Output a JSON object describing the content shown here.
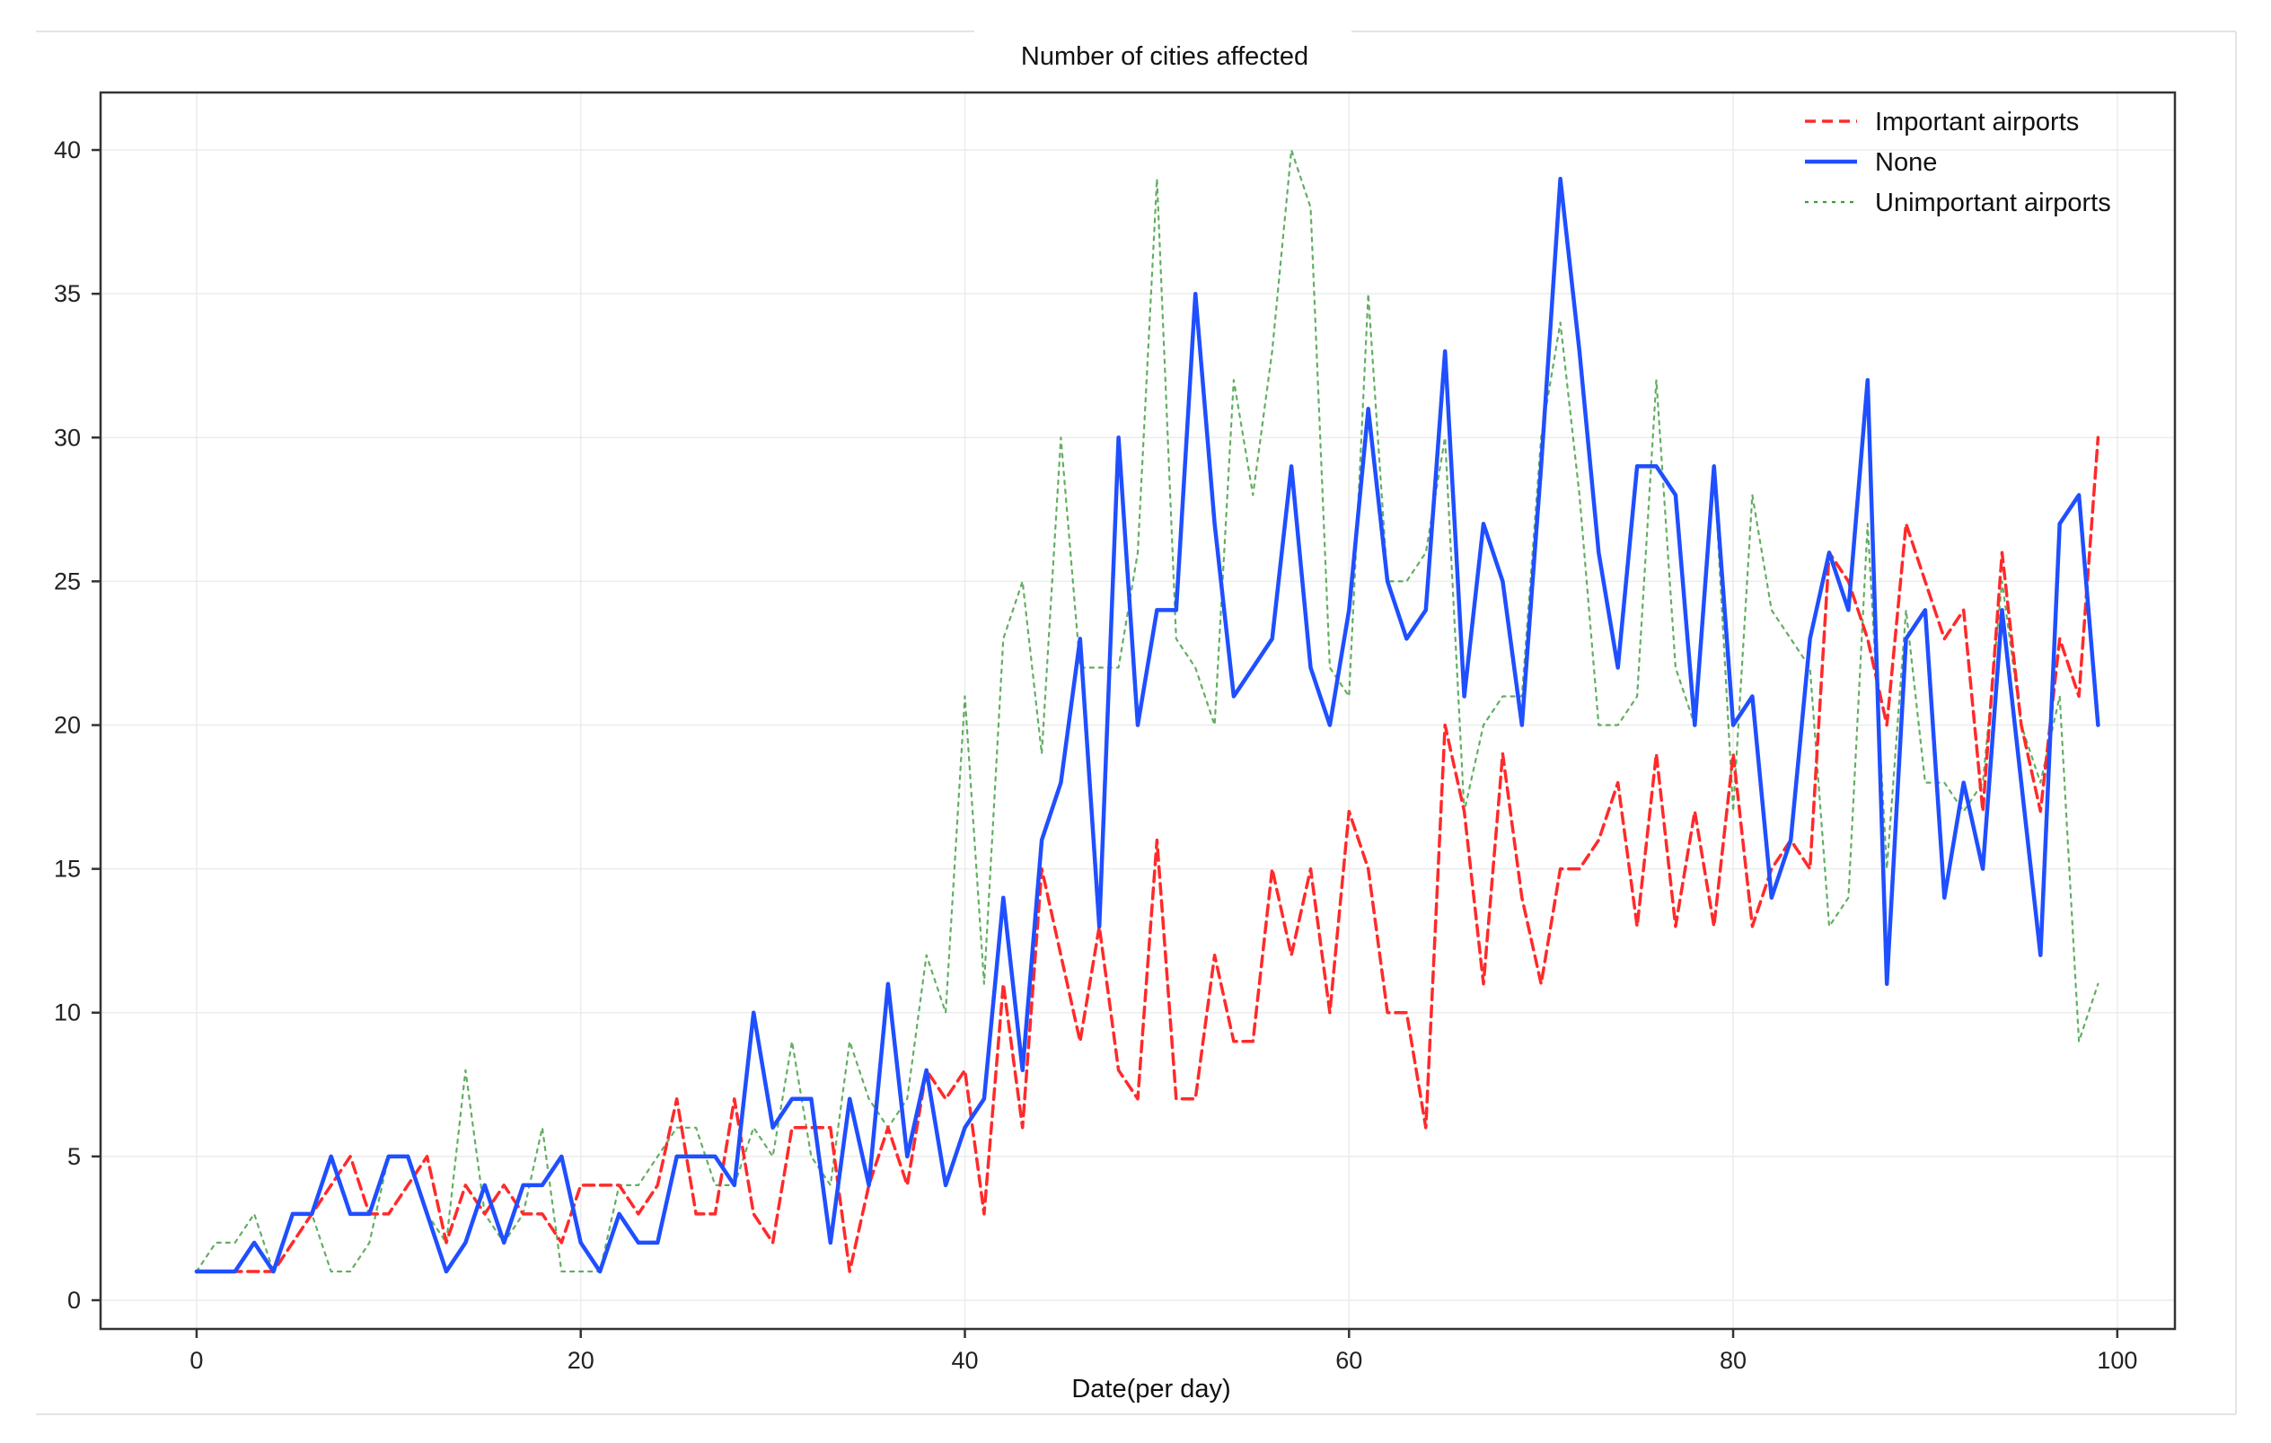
{
  "chart_data": {
    "type": "line",
    "title": "Number of cities affected",
    "xlabel": "Date(per day)",
    "ylabel": "",
    "xlim": [
      -5,
      103
    ],
    "ylim": [
      -1,
      42
    ],
    "xticks": [
      0,
      20,
      40,
      60,
      80,
      100
    ],
    "yticks": [
      0,
      5,
      10,
      15,
      20,
      25,
      30,
      35,
      40
    ],
    "grid": true,
    "legend_position": "top-right",
    "x": [
      0,
      1,
      2,
      3,
      4,
      5,
      6,
      7,
      8,
      9,
      10,
      11,
      12,
      13,
      14,
      15,
      16,
      17,
      18,
      19,
      20,
      21,
      22,
      23,
      24,
      25,
      26,
      27,
      28,
      29,
      30,
      31,
      32,
      33,
      34,
      35,
      36,
      37,
      38,
      39,
      40,
      41,
      42,
      43,
      44,
      45,
      46,
      47,
      48,
      49,
      50,
      51,
      52,
      53,
      54,
      55,
      56,
      57,
      58,
      59,
      60,
      61,
      62,
      63,
      64,
      65,
      66,
      67,
      68,
      69,
      70,
      71,
      72,
      73,
      74,
      75,
      76,
      77,
      78,
      79,
      80,
      81,
      82,
      83,
      84,
      85,
      86,
      87,
      88,
      89,
      90,
      91,
      92,
      93,
      94,
      95,
      96,
      97,
      98,
      99
    ],
    "series": [
      {
        "name": "Important airports",
        "color": "#ff2a2a",
        "style": "dashed",
        "values": [
          1,
          1,
          1,
          1,
          1,
          2,
          3,
          4,
          5,
          3,
          3,
          4,
          5,
          2,
          4,
          3,
          4,
          3,
          3,
          2,
          4,
          4,
          4,
          3,
          4,
          7,
          3,
          3,
          7,
          3,
          2,
          6,
          6,
          6,
          1,
          4,
          6,
          4,
          8,
          7,
          8,
          3,
          11,
          6,
          15,
          12,
          9,
          13,
          8,
          7,
          16,
          7,
          7,
          12,
          9,
          9,
          15,
          12,
          15,
          10,
          17,
          15,
          10,
          10,
          6,
          20,
          17,
          11,
          19,
          14,
          11,
          15,
          15,
          16,
          18,
          13,
          19,
          13,
          17,
          13,
          19,
          13,
          15,
          16,
          15,
          26,
          25,
          23,
          20,
          27,
          25,
          23,
          24,
          17,
          26,
          20,
          17,
          23,
          21,
          30
        ]
      },
      {
        "name": "None",
        "color": "#1f4fff",
        "style": "solid",
        "values": [
          1,
          1,
          1,
          2,
          1,
          3,
          3,
          5,
          3,
          3,
          5,
          5,
          3,
          1,
          2,
          4,
          2,
          4,
          4,
          5,
          2,
          1,
          3,
          2,
          2,
          5,
          5,
          5,
          4,
          10,
          6,
          7,
          7,
          2,
          7,
          4,
          11,
          5,
          8,
          4,
          6,
          7,
          14,
          8,
          16,
          18,
          23,
          13,
          30,
          20,
          24,
          24,
          35,
          27,
          21,
          22,
          23,
          29,
          22,
          20,
          24,
          31,
          25,
          23,
          24,
          33,
          21,
          27,
          25,
          20,
          29,
          39,
          33,
          26,
          22,
          29,
          29,
          28,
          20,
          29,
          20,
          21,
          14,
          16,
          23,
          26,
          24,
          32,
          11,
          23,
          24,
          14,
          18,
          15,
          24,
          18,
          12,
          27,
          28,
          20
        ]
      },
      {
        "name": "Unimportant airports",
        "color": "#3c9a3c",
        "style": "dashed",
        "values": [
          1,
          2,
          2,
          3,
          1,
          3,
          3,
          1,
          1,
          2,
          5,
          5,
          3,
          2,
          8,
          3,
          2,
          3,
          6,
          1,
          1,
          1,
          4,
          4,
          5,
          6,
          6,
          4,
          4,
          6,
          5,
          9,
          5,
          4,
          9,
          7,
          6,
          7,
          12,
          10,
          21,
          11,
          23,
          25,
          19,
          30,
          22,
          22,
          22,
          26,
          39,
          23,
          22,
          20,
          32,
          28,
          33,
          40,
          38,
          22,
          21,
          35,
          25,
          25,
          26,
          30,
          17,
          20,
          21,
          21,
          30,
          34,
          28,
          20,
          20,
          21,
          32,
          22,
          20,
          29,
          17,
          28,
          24,
          23,
          22,
          13,
          14,
          27,
          15,
          24,
          18,
          18,
          17,
          18,
          25,
          20,
          18,
          21,
          9,
          11
        ]
      }
    ]
  }
}
